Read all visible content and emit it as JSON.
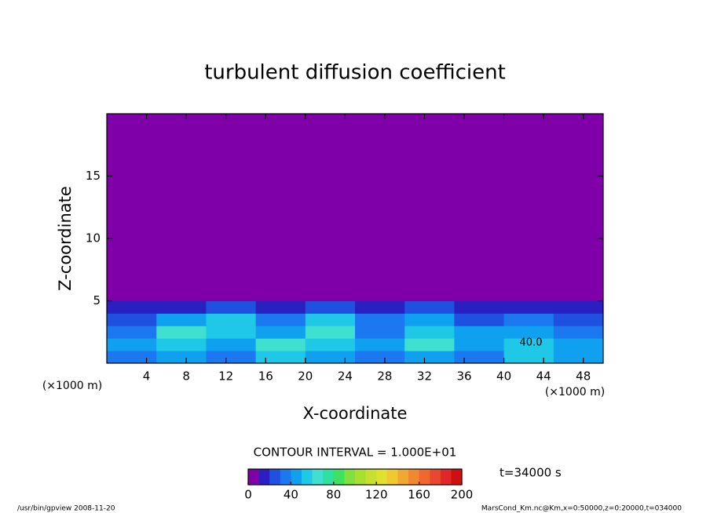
{
  "chart_data": {
    "type": "heatmap",
    "title": "turbulent diffusion coefficient",
    "xlabel": "X-coordinate",
    "ylabel": "Z-coordinate",
    "x_unit": "(×1000 m)",
    "xlim": [
      0,
      50
    ],
    "ylim": [
      0,
      20
    ],
    "xticks": [
      4,
      8,
      12,
      16,
      20,
      24,
      28,
      32,
      36,
      40,
      44,
      48
    ],
    "yticks": [
      5,
      10,
      15
    ],
    "xedges": [
      0,
      5,
      10,
      15,
      20,
      25,
      30,
      35,
      40,
      45,
      50
    ],
    "yedges": [
      0,
      1,
      2,
      3,
      4,
      5,
      20
    ],
    "values": [
      [
        30,
        40,
        30,
        50,
        40,
        30,
        40,
        30,
        50,
        40
      ],
      [
        40,
        50,
        40,
        60,
        50,
        40,
        60,
        40,
        50,
        40
      ],
      [
        30,
        60,
        50,
        40,
        60,
        30,
        50,
        40,
        40,
        30
      ],
      [
        20,
        40,
        50,
        30,
        50,
        30,
        40,
        20,
        30,
        20
      ],
      [
        10,
        10,
        20,
        10,
        20,
        10,
        20,
        10,
        10,
        10
      ],
      [
        0,
        0,
        0,
        0,
        0,
        0,
        0,
        0,
        0,
        0
      ]
    ],
    "contour_label": "40.0",
    "colorbar": {
      "title": "CONTOUR INTERVAL = 1.000E+01",
      "levels": [
        0,
        10,
        20,
        30,
        40,
        50,
        60,
        70,
        80,
        90,
        100,
        110,
        120,
        130,
        140,
        150,
        160,
        170,
        180,
        190,
        200
      ],
      "colors": [
        "#7f00a8",
        "#2a1fc0",
        "#1f50e0",
        "#1c78f0",
        "#10a0f0",
        "#20c8e8",
        "#40e0d0",
        "#30e0a0",
        "#40e060",
        "#80e040",
        "#a8e030",
        "#c8e030",
        "#e0e030",
        "#f0c830",
        "#f0a830",
        "#f08830",
        "#f06830",
        "#e84830",
        "#e02828",
        "#d01010"
      ],
      "ticks": [
        0,
        40,
        80,
        120,
        160,
        200
      ]
    },
    "time": "t=34000 s",
    "footer_left": "/usr/bin/gpview   2008-11-20",
    "footer_right": "MarsCond_Km.nc@Km,x=0:50000,z=0:20000,t=034000"
  }
}
